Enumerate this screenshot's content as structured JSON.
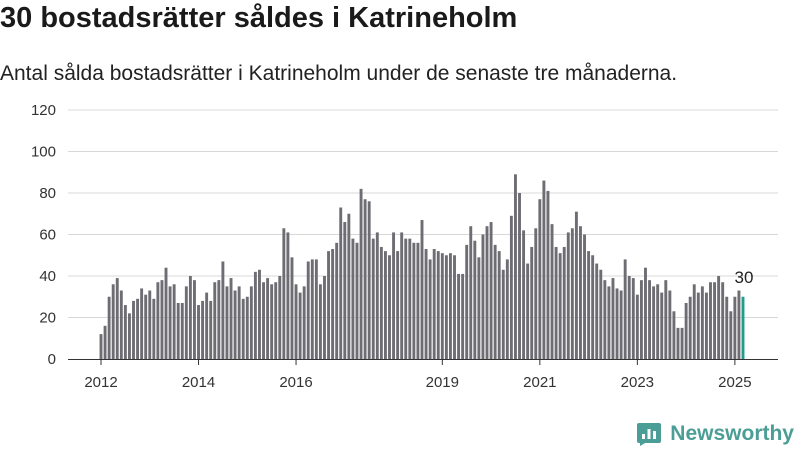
{
  "header": {
    "title": "30 bostadsrätter såldes i Katrineholm",
    "subtitle": "Antal sålda bostadsrätter i Katrineholm under de senaste tre månaderna."
  },
  "brand": {
    "name": "Newsworthy",
    "color": "#4a9e95"
  },
  "colors": {
    "bar": "#6d6d73",
    "highlight": "#1f9e8f",
    "grid": "#d8d8d8",
    "axis": "#333333"
  },
  "chart_data": {
    "type": "bar",
    "title": "30 bostadsrätter såldes i Katrineholm",
    "subtitle": "Antal sålda bostadsrätter i Katrineholm under de senaste tre månaderna.",
    "xlabel": "",
    "ylabel": "",
    "ylim": [
      0,
      120
    ],
    "yticks": [
      "0",
      "20",
      "40",
      "60",
      "80",
      "100",
      "120"
    ],
    "x_start": "2012-01",
    "x_ticks": [
      "2012",
      "2014",
      "2016",
      "2019",
      "2021",
      "2023",
      "2025"
    ],
    "x_tick_months": [
      "2012-01",
      "2014-01",
      "2016-01",
      "2019-01",
      "2021-01",
      "2023-01",
      "2025-01"
    ],
    "grid": true,
    "highlight_label": "30",
    "values": [
      12,
      16,
      30,
      36,
      39,
      33,
      26,
      22,
      28,
      29,
      34,
      31,
      33,
      29,
      37,
      38,
      44,
      35,
      36,
      27,
      27,
      35,
      40,
      38,
      26,
      28,
      32,
      28,
      37,
      38,
      47,
      35,
      39,
      33,
      35,
      29,
      30,
      35,
      42,
      43,
      37,
      39,
      36,
      37,
      40,
      63,
      61,
      49,
      36,
      32,
      35,
      47,
      48,
      48,
      36,
      40,
      52,
      53,
      56,
      73,
      66,
      70,
      58,
      56,
      82,
      77,
      76,
      58,
      61,
      54,
      52,
      50,
      61,
      52,
      61,
      58,
      58,
      56,
      56,
      67,
      53,
      48,
      53,
      52,
      51,
      50,
      51,
      50,
      41,
      41,
      55,
      64,
      57,
      49,
      60,
      64,
      66,
      55,
      52,
      43,
      48,
      69,
      89,
      80,
      62,
      46,
      54,
      63,
      77,
      86,
      81,
      65,
      54,
      51,
      54,
      61,
      63,
      71,
      64,
      60,
      52,
      50,
      46,
      43,
      38,
      35,
      39,
      34,
      33,
      48,
      40,
      39,
      31,
      38,
      44,
      38,
      35,
      36,
      32,
      38,
      33,
      23,
      15,
      15,
      27,
      30,
      36,
      32,
      35,
      32,
      37,
      37,
      40,
      37,
      30,
      23,
      30,
      33,
      30
    ]
  }
}
